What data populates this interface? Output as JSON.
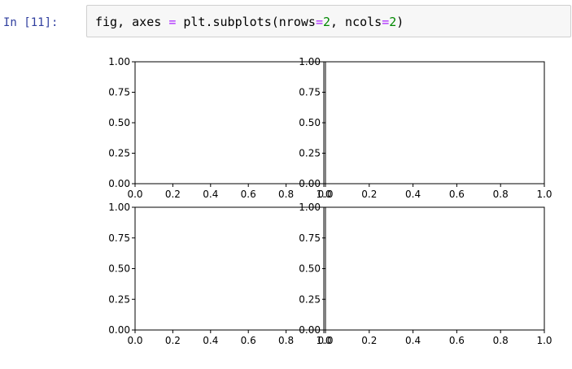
{
  "cell": {
    "prompt": "In [11]:",
    "code": {
      "tokens": [
        {
          "text": "fig, axes ",
          "cls": ""
        },
        {
          "text": "=",
          "cls": "op"
        },
        {
          "text": " plt.subplots(nrows",
          "cls": ""
        },
        {
          "text": "=",
          "cls": "op"
        },
        {
          "text": "2",
          "cls": "num"
        },
        {
          "text": ", ncols",
          "cls": ""
        },
        {
          "text": "=",
          "cls": "op"
        },
        {
          "text": "2",
          "cls": "num"
        },
        {
          "text": ")",
          "cls": ""
        }
      ]
    }
  },
  "chart_data": [
    {
      "type": "scatter",
      "series": [],
      "xlim": [
        0.0,
        1.0
      ],
      "ylim": [
        0.0,
        1.0
      ],
      "xticks": [
        "0.0",
        "0.2",
        "0.4",
        "0.6",
        "0.8",
        "1.0"
      ],
      "yticks": [
        "0.00",
        "0.25",
        "0.50",
        "0.75",
        "1.00"
      ],
      "grid": false
    },
    {
      "type": "scatter",
      "series": [],
      "xlim": [
        0.0,
        1.0
      ],
      "ylim": [
        0.0,
        1.0
      ],
      "xticks": [
        "0.0",
        "0.2",
        "0.4",
        "0.6",
        "0.8",
        "1.0"
      ],
      "yticks": [
        "0.00",
        "0.25",
        "0.50",
        "0.75",
        "1.00"
      ],
      "grid": false
    },
    {
      "type": "scatter",
      "series": [],
      "xlim": [
        0.0,
        1.0
      ],
      "ylim": [
        0.0,
        1.0
      ],
      "xticks": [
        "0.0",
        "0.2",
        "0.4",
        "0.6",
        "0.8",
        "1.0"
      ],
      "yticks": [
        "0.00",
        "0.25",
        "0.50",
        "0.75",
        "1.00"
      ],
      "grid": false
    },
    {
      "type": "scatter",
      "series": [],
      "xlim": [
        0.0,
        1.0
      ],
      "ylim": [
        0.0,
        1.0
      ],
      "xticks": [
        "0.0",
        "0.2",
        "0.4",
        "0.6",
        "0.8",
        "1.0"
      ],
      "yticks": [
        "0.00",
        "0.25",
        "0.50",
        "0.75",
        "1.00"
      ],
      "grid": false
    }
  ],
  "colors": {
    "prompt": "#303f9f",
    "operator": "#aa22ff",
    "number": "#008800",
    "axes": "#000000"
  }
}
